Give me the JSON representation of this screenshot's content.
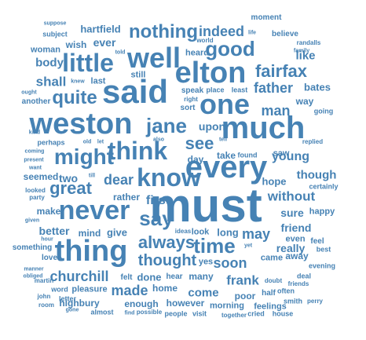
{
  "word_cloud": {
    "color": "#4682b4",
    "words": [
      {
        "text": "must",
        "weight": 100
      },
      {
        "text": "much",
        "weight": 78
      },
      {
        "text": "said",
        "weight": 74
      },
      {
        "text": "every",
        "weight": 72
      },
      {
        "text": "weston",
        "weight": 70
      },
      {
        "text": "elton",
        "weight": 66
      },
      {
        "text": "one",
        "weight": 66
      },
      {
        "text": "well",
        "weight": 62
      },
      {
        "text": "thing",
        "weight": 62
      },
      {
        "text": "never",
        "weight": 60
      },
      {
        "text": "little",
        "weight": 58
      },
      {
        "text": "think",
        "weight": 58
      },
      {
        "text": "know",
        "weight": 58
      },
      {
        "text": "might",
        "weight": 54
      },
      {
        "text": "time",
        "weight": 52
      },
      {
        "text": "jane",
        "weight": 50
      },
      {
        "text": "good",
        "weight": 50
      },
      {
        "text": "say",
        "weight": 46
      },
      {
        "text": "quite",
        "weight": 46
      },
      {
        "text": "always",
        "weight": 44
      },
      {
        "text": "nothing",
        "weight": 44
      },
      {
        "text": "great",
        "weight": 44
      },
      {
        "text": "see",
        "weight": 42
      },
      {
        "text": "fairfax",
        "weight": 40
      },
      {
        "text": "thought",
        "weight": 40
      },
      {
        "text": "churchill",
        "weight": 38
      },
      {
        "text": "indeed",
        "weight": 38
      },
      {
        "text": "dear",
        "weight": 38
      },
      {
        "text": "may",
        "weight": 38
      },
      {
        "text": "man",
        "weight": 36
      },
      {
        "text": "soon",
        "weight": 36
      },
      {
        "text": "father",
        "weight": 36
      },
      {
        "text": "made",
        "weight": 36
      },
      {
        "text": "shall",
        "weight": 34
      },
      {
        "text": "without",
        "weight": 34
      },
      {
        "text": "frank",
        "weight": 34
      },
      {
        "text": "first",
        "weight": 34
      },
      {
        "text": "young",
        "weight": 32
      },
      {
        "text": "body",
        "weight": 30
      },
      {
        "text": "like",
        "weight": 30
      },
      {
        "text": "though",
        "weight": 30
      },
      {
        "text": "come",
        "weight": 30
      },
      {
        "text": "ever",
        "weight": 28
      },
      {
        "text": "really",
        "weight": 28
      },
      {
        "text": "upon",
        "weight": 28
      },
      {
        "text": "two",
        "weight": 28
      },
      {
        "text": "better",
        "weight": 28
      },
      {
        "text": "friend",
        "weight": 28
      },
      {
        "text": "sure",
        "weight": 28
      },
      {
        "text": "done",
        "weight": 26
      },
      {
        "text": "hartfield",
        "weight": 26
      },
      {
        "text": "bates",
        "weight": 26
      },
      {
        "text": "long",
        "weight": 26
      },
      {
        "text": "give",
        "weight": 26
      },
      {
        "text": "hope",
        "weight": 26
      },
      {
        "text": "day",
        "weight": 24
      },
      {
        "text": "mind",
        "weight": 24
      },
      {
        "text": "rather",
        "weight": 24
      },
      {
        "text": "away",
        "weight": 24
      },
      {
        "text": "make",
        "weight": 22
      },
      {
        "text": "way",
        "weight": 22
      },
      {
        "text": "seemed",
        "weight": 22
      },
      {
        "text": "poor",
        "weight": 22
      },
      {
        "text": "highbury",
        "weight": 22
      },
      {
        "text": "wish",
        "weight": 22
      },
      {
        "text": "enough",
        "weight": 22
      },
      {
        "text": "home",
        "weight": 22
      },
      {
        "text": "however",
        "weight": 22
      },
      {
        "text": "many",
        "weight": 22
      },
      {
        "text": "take",
        "weight": 22
      },
      {
        "text": "saw",
        "weight": 20
      },
      {
        "text": "yes",
        "weight": 20
      },
      {
        "text": "came",
        "weight": 20
      },
      {
        "text": "heard",
        "weight": 20
      },
      {
        "text": "last",
        "weight": 20
      },
      {
        "text": "morning",
        "weight": 20
      },
      {
        "text": "happy",
        "weight": 18
      },
      {
        "text": "look",
        "weight": 18
      },
      {
        "text": "still",
        "weight": 18
      },
      {
        "text": "pleasure",
        "weight": 18
      },
      {
        "text": "feelings",
        "weight": 18
      },
      {
        "text": "woman",
        "weight": 18
      },
      {
        "text": "even",
        "weight": 18
      },
      {
        "text": "another",
        "weight": 16
      },
      {
        "text": "something",
        "weight": 16
      },
      {
        "text": "love",
        "weight": 16
      },
      {
        "text": "moment",
        "weight": 16
      },
      {
        "text": "believe",
        "weight": 16
      },
      {
        "text": "sort",
        "weight": 16
      },
      {
        "text": "speak",
        "weight": 16
      },
      {
        "text": "felt",
        "weight": 16
      },
      {
        "text": "hear",
        "weight": 16
      },
      {
        "text": "half",
        "weight": 16
      },
      {
        "text": "feel",
        "weight": 16
      },
      {
        "text": "perhaps",
        "weight": 14
      },
      {
        "text": "subject",
        "weight": 14
      },
      {
        "text": "going",
        "weight": 14
      },
      {
        "text": "certainly",
        "weight": 14
      },
      {
        "text": "letter",
        "weight": 14
      },
      {
        "text": "people",
        "weight": 14
      },
      {
        "text": "best",
        "weight": 14
      },
      {
        "text": "evening",
        "weight": 14
      },
      {
        "text": "deal",
        "weight": 14
      },
      {
        "text": "often",
        "weight": 14
      },
      {
        "text": "word",
        "weight": 14
      },
      {
        "text": "smith",
        "weight": 14
      },
      {
        "text": "house",
        "weight": 14
      },
      {
        "text": "almost",
        "weight": 14
      },
      {
        "text": "visit",
        "weight": 14
      },
      {
        "text": "cried",
        "weight": 14
      },
      {
        "text": "found",
        "weight": 14
      },
      {
        "text": "place",
        "weight": 14
      },
      {
        "text": "least",
        "weight": 14
      },
      {
        "text": "looked",
        "weight": 12
      },
      {
        "text": "party",
        "weight": 12
      },
      {
        "text": "randalls",
        "weight": 12
      },
      {
        "text": "replied",
        "weight": 12
      },
      {
        "text": "friends",
        "weight": 12
      },
      {
        "text": "doubt",
        "weight": 12
      },
      {
        "text": "right",
        "weight": 12
      },
      {
        "text": "world",
        "weight": 12
      },
      {
        "text": "ideas",
        "weight": 12
      },
      {
        "text": "martin",
        "weight": 12
      },
      {
        "text": "john",
        "weight": 12
      },
      {
        "text": "room",
        "weight": 12
      },
      {
        "text": "perry",
        "weight": 12
      },
      {
        "text": "together",
        "weight": 12
      },
      {
        "text": "possible",
        "weight": 12
      },
      {
        "text": "told",
        "weight": 10
      },
      {
        "text": "suppose",
        "weight": 10
      },
      {
        "text": "kind",
        "weight": 10
      },
      {
        "text": "coming",
        "weight": 10
      },
      {
        "text": "present",
        "weight": 10
      },
      {
        "text": "want",
        "weight": 10
      },
      {
        "text": "given",
        "weight": 10
      },
      {
        "text": "hour",
        "weight": 10
      },
      {
        "text": "ought",
        "weight": 10
      },
      {
        "text": "manner",
        "weight": 10
      },
      {
        "text": "obliged",
        "weight": 10
      },
      {
        "text": "gone",
        "weight": 10
      },
      {
        "text": "find",
        "weight": 10
      },
      {
        "text": "old",
        "weight": 10
      },
      {
        "text": "let",
        "weight": 10
      },
      {
        "text": "till",
        "weight": 10
      },
      {
        "text": "family",
        "weight": 10
      },
      {
        "text": "life",
        "weight": 10
      },
      {
        "text": "tell",
        "weight": 10
      },
      {
        "text": "also",
        "weight": 10
      },
      {
        "text": "yet",
        "weight": 10
      },
      {
        "text": "knew",
        "weight": 10
      }
    ]
  }
}
